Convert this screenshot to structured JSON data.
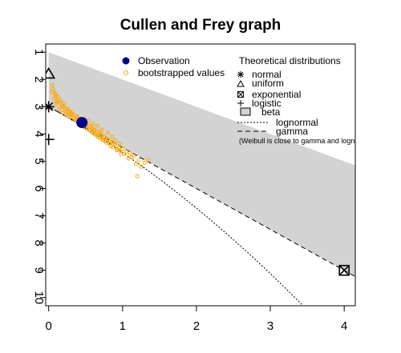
{
  "chart_data": {
    "type": "scatter",
    "title": "Cullen and Frey graph",
    "xlabel": "",
    "ylabel": "",
    "xlim": [
      -0.04,
      4.15
    ],
    "ylim": [
      10.3,
      0.7
    ],
    "y_reversed": true,
    "x_ticks": [
      0,
      1,
      2,
      3,
      4
    ],
    "y_ticks": [
      1,
      2,
      3,
      4,
      5,
      6,
      7,
      8,
      9,
      10
    ],
    "observation": {
      "x": 0.45,
      "y": 3.58,
      "color": "#00008B"
    },
    "bootstrap_color": "#FFA500",
    "bootstrap_points": [
      [
        0.05,
        2.2
      ],
      [
        0.06,
        2.35
      ],
      [
        0.08,
        2.5
      ],
      [
        0.1,
        2.6
      ],
      [
        0.07,
        2.7
      ],
      [
        0.12,
        2.75
      ],
      [
        0.15,
        2.85
      ],
      [
        0.1,
        2.9
      ],
      [
        0.18,
        2.95
      ],
      [
        0.2,
        3.0
      ],
      [
        0.22,
        3.05
      ],
      [
        0.14,
        3.1
      ],
      [
        0.25,
        3.12
      ],
      [
        0.28,
        3.18
      ],
      [
        0.3,
        3.2
      ],
      [
        0.19,
        3.22
      ],
      [
        0.32,
        3.25
      ],
      [
        0.35,
        3.3
      ],
      [
        0.24,
        3.3
      ],
      [
        0.38,
        3.35
      ],
      [
        0.4,
        3.4
      ],
      [
        0.29,
        3.38
      ],
      [
        0.42,
        3.45
      ],
      [
        0.36,
        3.48
      ],
      [
        0.45,
        3.5
      ],
      [
        0.48,
        3.55
      ],
      [
        0.5,
        3.6
      ],
      [
        0.41,
        3.6
      ],
      [
        0.52,
        3.65
      ],
      [
        0.55,
        3.7
      ],
      [
        0.47,
        3.72
      ],
      [
        0.58,
        3.75
      ],
      [
        0.6,
        3.8
      ],
      [
        0.53,
        3.82
      ],
      [
        0.62,
        3.85
      ],
      [
        0.65,
        3.9
      ],
      [
        0.58,
        3.92
      ],
      [
        0.68,
        3.95
      ],
      [
        0.7,
        4.0
      ],
      [
        0.63,
        4.02
      ],
      [
        0.72,
        4.05
      ],
      [
        0.75,
        4.1
      ],
      [
        0.67,
        4.12
      ],
      [
        0.78,
        4.15
      ],
      [
        0.8,
        4.2
      ],
      [
        0.73,
        4.22
      ],
      [
        0.83,
        4.28
      ],
      [
        0.85,
        4.3
      ],
      [
        0.78,
        4.32
      ],
      [
        0.88,
        4.38
      ],
      [
        0.9,
        4.4
      ],
      [
        0.84,
        4.45
      ],
      [
        0.95,
        4.5
      ],
      [
        1.0,
        4.55
      ],
      [
        0.92,
        4.6
      ],
      [
        1.05,
        4.65
      ],
      [
        1.1,
        4.7
      ],
      [
        0.98,
        4.75
      ],
      [
        1.15,
        4.8
      ],
      [
        1.22,
        4.95
      ],
      [
        1.08,
        4.9
      ],
      [
        1.3,
        5.05
      ],
      [
        1.18,
        5.1
      ],
      [
        0.04,
        2.45
      ],
      [
        0.09,
        2.55
      ],
      [
        0.13,
        2.65
      ],
      [
        0.16,
        2.78
      ],
      [
        0.11,
        2.82
      ],
      [
        0.21,
        2.88
      ],
      [
        0.17,
        3.02
      ],
      [
        0.26,
        3.08
      ],
      [
        0.23,
        3.15
      ],
      [
        0.31,
        3.28
      ],
      [
        0.27,
        3.32
      ],
      [
        0.34,
        3.42
      ],
      [
        0.39,
        3.52
      ],
      [
        0.44,
        3.65
      ],
      [
        0.49,
        3.78
      ],
      [
        0.56,
        3.88
      ],
      [
        0.61,
        3.98
      ],
      [
        0.66,
        4.08
      ],
      [
        0.71,
        4.18
      ],
      [
        0.76,
        4.25
      ],
      [
        0.82,
        4.35
      ],
      [
        0.87,
        4.48
      ],
      [
        0.93,
        4.55
      ],
      [
        0.97,
        4.62
      ],
      [
        1.02,
        4.72
      ],
      [
        1.12,
        4.85
      ],
      [
        1.25,
        5.2
      ],
      [
        1.35,
        4.95
      ],
      [
        1.2,
        5.55
      ],
      [
        0.6,
        3.62
      ],
      [
        0.54,
        3.5
      ],
      [
        0.66,
        3.7
      ],
      [
        0.72,
        3.85
      ],
      [
        0.8,
        3.95
      ],
      [
        0.86,
        4.1
      ],
      [
        0.9,
        4.25
      ],
      [
        0.96,
        4.35
      ]
    ],
    "theoretical_points": {
      "normal": {
        "x": 0,
        "y": 3,
        "symbol": "asterisk"
      },
      "uniform": {
        "x": 0,
        "y": 1.8,
        "symbol": "triangle"
      },
      "exponential": {
        "x": 4,
        "y": 9,
        "symbol": "boxed-x"
      },
      "logistic": {
        "x": 0,
        "y": 4.2,
        "symbol": "plus"
      }
    },
    "beta_region_color": "#D3D3D3",
    "legend": {
      "observation": "Observation",
      "bootstrap": "bootstrapped values",
      "header": "Theoretical distributions",
      "normal": "normal",
      "uniform": "uniform",
      "exponential": "exponential",
      "logistic": "logistic",
      "beta": "beta",
      "lognormal": "lognormal",
      "gamma": "gamma",
      "note": "(Weibull is close to gamma and lognormal)"
    }
  }
}
